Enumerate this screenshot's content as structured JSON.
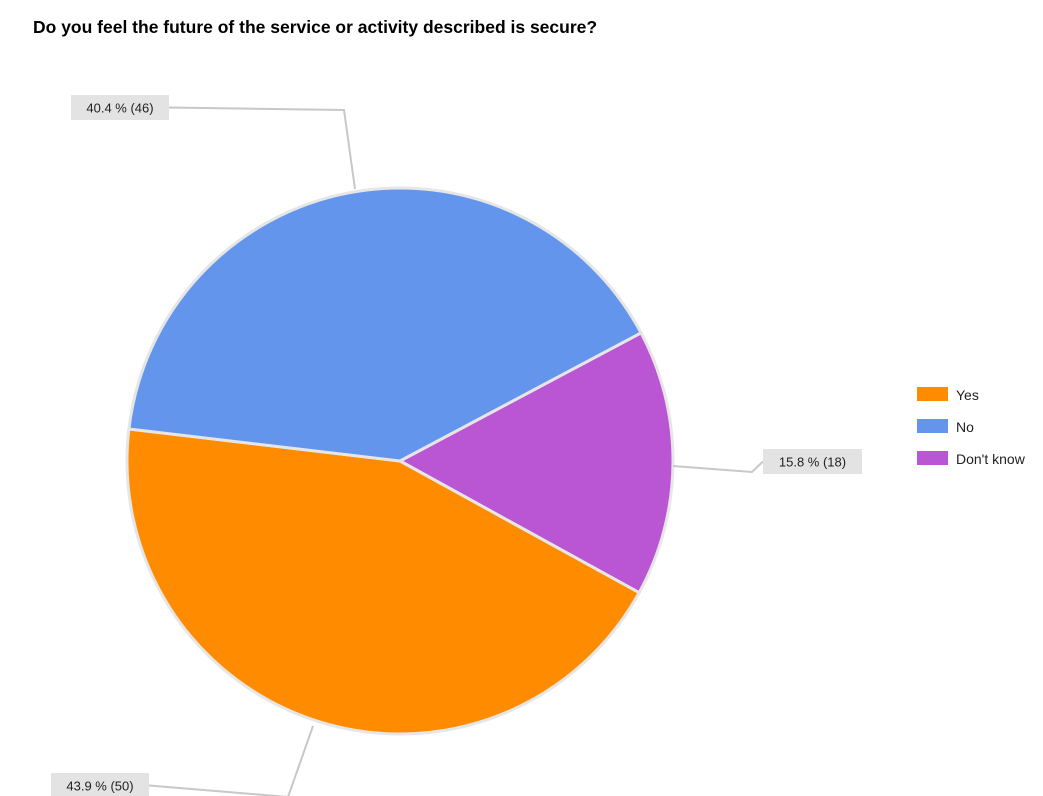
{
  "chart_data": {
    "type": "pie",
    "title": "Do you feel the future of the service or activity described is secure?",
    "categories": [
      "Yes",
      "No",
      "Don't know"
    ],
    "values": [
      50,
      46,
      18
    ],
    "percentages": [
      43.9,
      40.4,
      15.8
    ],
    "colors": [
      "#ff8c00",
      "#6495ed",
      "#ba55d3"
    ],
    "data_labels": [
      "43.9 % (50)",
      "40.4 % (46)",
      "15.8 % (18)"
    ],
    "legend": {
      "placement": "right",
      "entries": [
        "Yes",
        "No",
        "Don't know"
      ]
    }
  }
}
